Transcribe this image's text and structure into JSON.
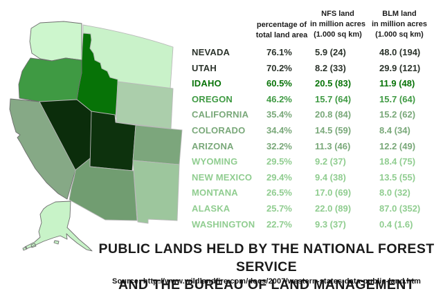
{
  "title": {
    "line1": "PUBLIC LANDS HELD BY THE NATIONAL FOREST SERVICE",
    "line2": "AND THE BUREAU OF LAND MANAGEMENT"
  },
  "source": "Source: http://www.wildlandfire.com/docs/2007/western-states-data-public-land.htm",
  "table": {
    "headers": {
      "pct": [
        "percentage of",
        "total land area"
      ],
      "nfs": [
        "NFS land",
        "in million acres",
        "(1.000 sq km)"
      ],
      "blm": [
        "BLM land",
        "in million acres",
        "(1.000 sq km)"
      ]
    },
    "rows": [
      {
        "state": "NEVADA",
        "pct": "76.1%",
        "nfs": "5.9 (24)",
        "blm": "48.0 (194)",
        "tier": "t1"
      },
      {
        "state": "UTAH",
        "pct": "70.2%",
        "nfs": "8.2 (33)",
        "blm": "29.9 (121)",
        "tier": "t1"
      },
      {
        "state": "IDAHO",
        "pct": "60.5%",
        "nfs": "20.5 (83)",
        "blm": "11.9 (48)",
        "tier": "t2"
      },
      {
        "state": "OREGON",
        "pct": "46.2%",
        "nfs": "15.7 (64)",
        "blm": "15.7 (64)",
        "tier": "t3"
      },
      {
        "state": "CALIFORNIA",
        "pct": "35.4%",
        "nfs": "20.8 (84)",
        "blm": "15.2 (62)",
        "tier": "t4"
      },
      {
        "state": "COLORADO",
        "pct": "34.4%",
        "nfs": "14.5 (59)",
        "blm": "8.4 (34)",
        "tier": "t4"
      },
      {
        "state": "ARIZONA",
        "pct": "32.2%",
        "nfs": "11.3 (46)",
        "blm": "12.2 (49)",
        "tier": "t4"
      },
      {
        "state": "WYOMING",
        "pct": "29.5%",
        "nfs": "9.2 (37)",
        "blm": "18.4 (75)",
        "tier": "t5"
      },
      {
        "state": "NEW MEXICO",
        "pct": "29.4%",
        "nfs": "9.4 (38)",
        "blm": "13.5 (55)",
        "tier": "t5"
      },
      {
        "state": "MONTANA",
        "pct": "26.5%",
        "nfs": "17.0 (69)",
        "blm": "8.0 (32)",
        "tier": "t5"
      },
      {
        "state": "ALASKA",
        "pct": "25.7%",
        "nfs": "22.0 (89)",
        "blm": "87.0 (352)",
        "tier": "t5"
      },
      {
        "state": "WASHINGTON",
        "pct": "22.7%",
        "nfs": "9.3 (37)",
        "blm": "0.4 (1.6)",
        "tier": "t5"
      }
    ]
  },
  "colors": {
    "tiers": {
      "t1": "#2b332b",
      "t2": "#077307",
      "t3": "#3f9a43",
      "t4": "#79a879",
      "t5": "#90cd90"
    }
  },
  "map": {
    "states": [
      {
        "id": "WA",
        "name": "Washington",
        "fill": "#cdf6cd"
      },
      {
        "id": "MT",
        "name": "Montana",
        "fill": "#c9f2c9"
      },
      {
        "id": "OR",
        "name": "Oregon",
        "fill": "#3f9a43"
      },
      {
        "id": "ID",
        "name": "Idaho",
        "fill": "#077307"
      },
      {
        "id": "WY",
        "name": "Wyoming",
        "fill": "#abceab"
      },
      {
        "id": "CA",
        "name": "California",
        "fill": "#86a986"
      },
      {
        "id": "NV",
        "name": "Nevada",
        "fill": "#0b2d0b"
      },
      {
        "id": "UT",
        "name": "Utah",
        "fill": "#0d320d"
      },
      {
        "id": "CO",
        "name": "Colorado",
        "fill": "#7ca67c"
      },
      {
        "id": "AZ",
        "name": "Arizona",
        "fill": "#719d71"
      },
      {
        "id": "NM",
        "name": "New Mexico",
        "fill": "#9dc69d"
      },
      {
        "id": "AK",
        "name": "Alaska",
        "fill": "#c8f3c8"
      }
    ]
  },
  "chart_data": {
    "type": "table",
    "title": "PUBLIC LANDS HELD BY THE NATIONAL FOREST SERVICE AND THE BUREAU OF LAND MANAGEMENT",
    "columns": [
      "state",
      "percentage of total land area",
      "NFS land in million acres (1.000 sq km)",
      "BLM land in million acres (1.000 sq km)"
    ],
    "categories": [
      "NEVADA",
      "UTAH",
      "IDAHO",
      "OREGON",
      "CALIFORNIA",
      "COLORADO",
      "ARIZONA",
      "WYOMING",
      "NEW MEXICO",
      "MONTANA",
      "ALASKA",
      "WASHINGTON"
    ],
    "series": [
      {
        "name": "percentage of total land area (%)",
        "values": [
          76.1,
          70.2,
          60.5,
          46.2,
          35.4,
          34.4,
          32.2,
          29.5,
          29.4,
          26.5,
          25.7,
          22.7
        ]
      },
      {
        "name": "NFS land, million acres",
        "values": [
          5.9,
          8.2,
          20.5,
          15.7,
          20.8,
          14.5,
          11.3,
          9.2,
          9.4,
          17.0,
          22.0,
          9.3
        ]
      },
      {
        "name": "NFS land, 1.000 sq km",
        "values": [
          24,
          33,
          83,
          64,
          84,
          59,
          46,
          37,
          38,
          69,
          89,
          37
        ]
      },
      {
        "name": "BLM land, million acres",
        "values": [
          48.0,
          29.9,
          11.9,
          15.7,
          15.2,
          8.4,
          12.2,
          18.4,
          13.5,
          8.0,
          87.0,
          0.4
        ]
      },
      {
        "name": "BLM land, 1.000 sq km",
        "values": [
          194,
          121,
          48,
          64,
          62,
          34,
          49,
          75,
          55,
          32,
          352,
          1.6
        ]
      }
    ],
    "layout_hints": "choropleth map of western US states at left (darker green = higher percentage of public land), data table at right, title and source URL at bottom"
  }
}
